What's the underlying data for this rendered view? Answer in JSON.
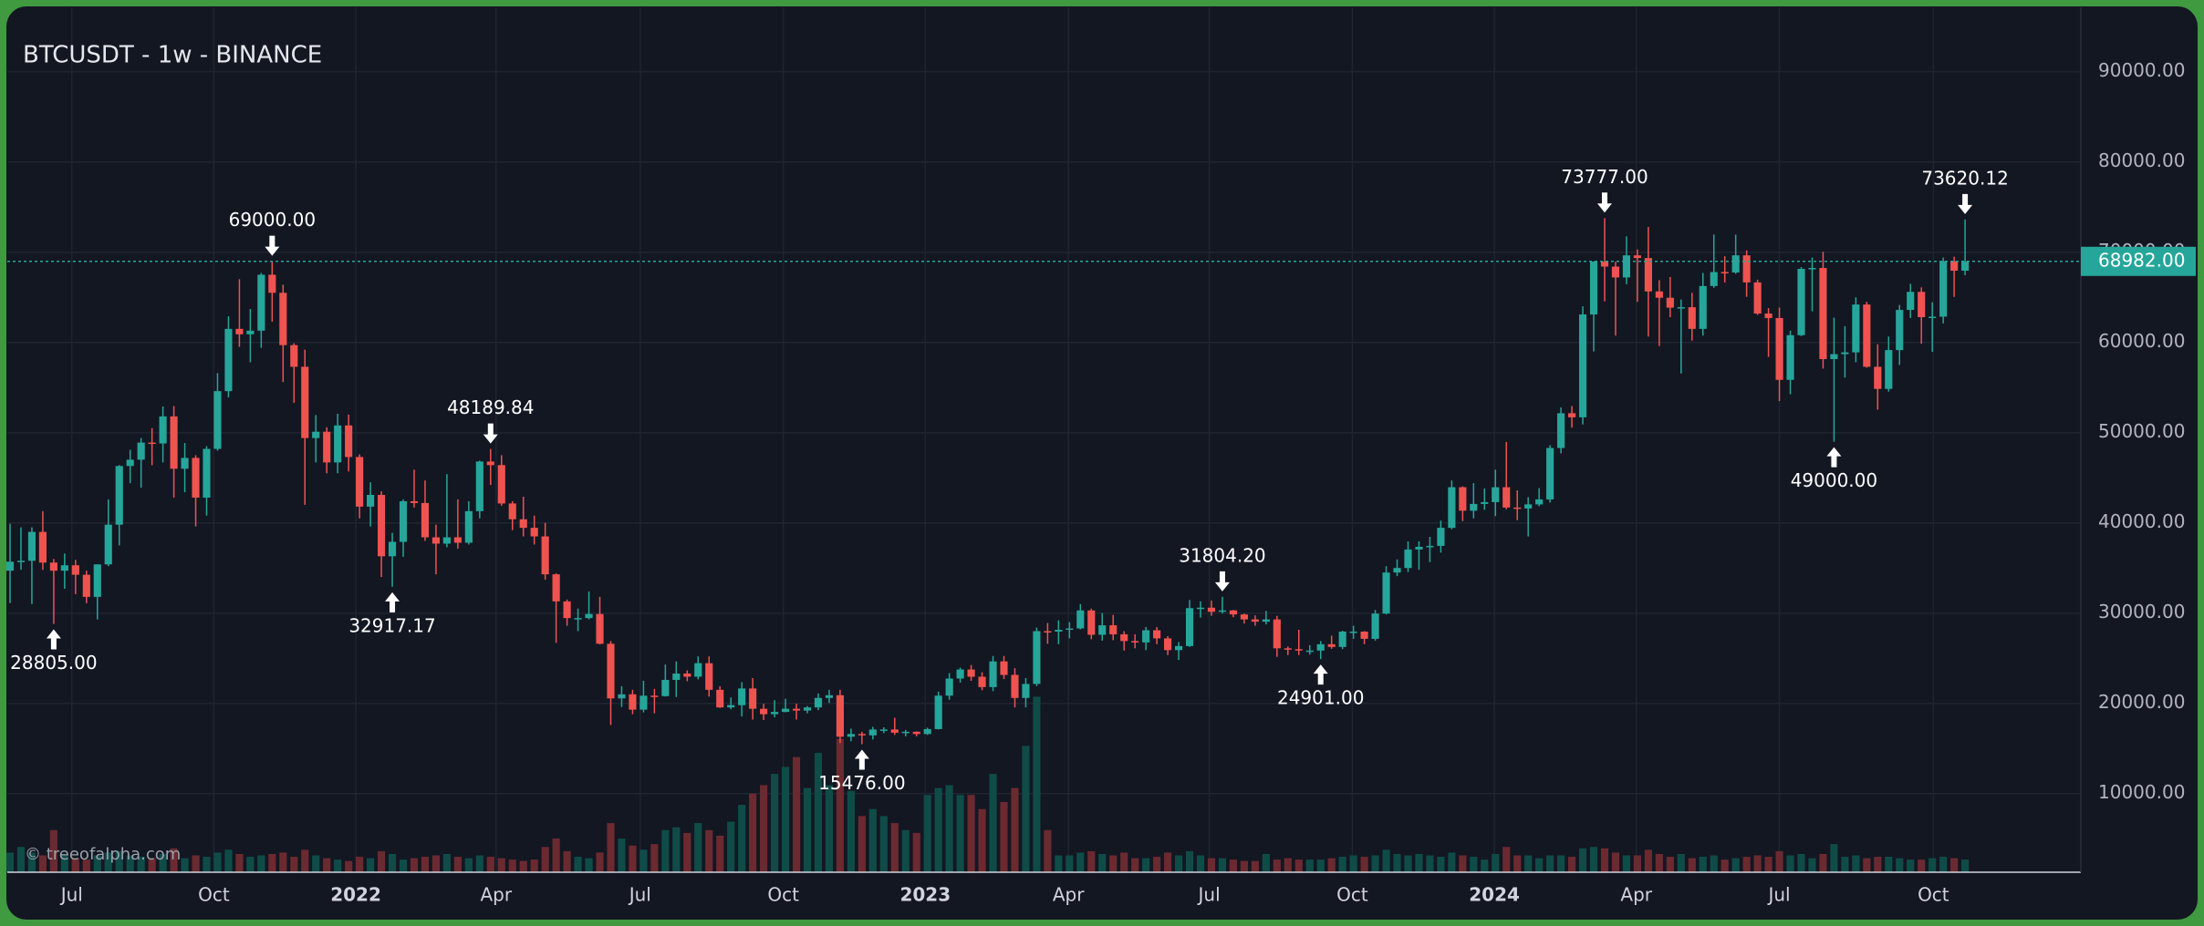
{
  "chart_data": {
    "type": "candlestick",
    "title": "BTCUSDT - 1w - BINANCE",
    "watermark": "© treeofalpha.com",
    "up_color": "#26a69a",
    "down_color": "#ef5350",
    "volume_up_color": "#0f4c48",
    "volume_down_color": "#6b2a30",
    "grid": true,
    "xlim": [
      -0.25,
      189.6
    ],
    "xticks": [
      {
        "value": 5.66,
        "label": "Jul"
      },
      {
        "value": 18.66,
        "label": "Oct"
      },
      {
        "value": 31.66,
        "label": "2022"
      },
      {
        "value": 44.5,
        "label": "Apr"
      },
      {
        "value": 57.7,
        "label": "Jul"
      },
      {
        "value": 70.8,
        "label": "Oct"
      },
      {
        "value": 83.8,
        "label": "2023"
      },
      {
        "value": 96.9,
        "label": "Apr"
      },
      {
        "value": 109.8,
        "label": "Jul"
      },
      {
        "value": 122.9,
        "label": "Oct"
      },
      {
        "value": 135.9,
        "label": "2024"
      },
      {
        "value": 148.9,
        "label": "Apr"
      },
      {
        "value": 162.0,
        "label": "Jul"
      },
      {
        "value": 176.1,
        "label": "Oct"
      }
    ],
    "ylim": [
      1283,
      97140
    ],
    "yticks": [
      {
        "value": 10000,
        "label": "10000.00"
      },
      {
        "value": 20000,
        "label": "20000.00"
      },
      {
        "value": 30000,
        "label": "30000.00"
      },
      {
        "value": 40000,
        "label": "40000.00"
      },
      {
        "value": 50000,
        "label": "50000.00"
      },
      {
        "value": 60000,
        "label": "60000.00"
      },
      {
        "value": 70000,
        "label": "70000.00"
      },
      {
        "value": 80000,
        "label": "80000.00"
      },
      {
        "value": 90000,
        "label": "90000.00"
      }
    ],
    "volume_lim": [
      0,
      12320000
    ],
    "last_price": {
      "value": 68982,
      "label": "68982.00"
    },
    "annotations": [
      {
        "value": 28805,
        "label": "28805.00"
      },
      {
        "value": 69000,
        "label": "69000.00"
      },
      {
        "value": 32917.17,
        "label": "32917.17"
      },
      {
        "value": 48189.84,
        "label": "48189.84"
      },
      {
        "value": 15476,
        "label": "15476.00"
      },
      {
        "value": 31804.2,
        "label": "31804.20"
      },
      {
        "value": 24901,
        "label": "24901.00"
      },
      {
        "value": 73777,
        "label": "73777.00"
      },
      {
        "value": 49000,
        "label": "49000.00"
      },
      {
        "value": 73620.12,
        "label": "73620.12"
      }
    ],
    "open": [
      34700,
      35700,
      35800,
      39000,
      35600,
      34700,
      35300,
      34250,
      31800,
      35400,
      39800,
      46300,
      47000,
      48900,
      48800,
      51800,
      46000,
      47200,
      42800,
      48200,
      54600,
      61500,
      60900,
      61300,
      67500,
      65500,
      59700,
      57300,
      49400,
      50100,
      46700,
      50800,
      47300,
      41800,
      43100,
      36300,
      37900,
      42400,
      42200,
      38400,
      37700,
      38400,
      37800,
      41300,
      46800,
      46400,
      42150,
      40400,
      39450,
      38500,
      34300,
      31300,
      29450,
      29450,
      29900,
      26600,
      20550,
      21000,
      19300,
      20850,
      20800,
      22600,
      23300,
      22950,
      24450,
      21500,
      19550,
      19800,
      21650,
      19400,
      18800,
      19050,
      19400,
      19200,
      19550,
      20600,
      20900,
      16300,
      16600,
      16450,
      17100,
      17100,
      16750,
      16850,
      16600,
      17150,
      20850,
      22750,
      23750,
      22950,
      21800,
      24650,
      23150,
      20600,
      22150,
      28000,
      27950,
      28150,
      28300,
      30300,
      27600,
      28650,
      27650,
      26900,
      26750,
      28100,
      27200,
      25900,
      26350,
      30550,
      30600,
      30150,
      30300,
      29850,
      29300,
      29050,
      29300,
      26100,
      26000,
      25850,
      25850,
      26550,
      26250,
      27950,
      27950,
      27150,
      29950,
      34500,
      35000,
      37050,
      37350,
      37450,
      39450,
      43950,
      41350,
      42100,
      42300,
      43950,
      41700,
      41600,
      42050,
      42600,
      48300,
      52150,
      51700,
      63100,
      68950,
      68400,
      67200,
      69650,
      69350,
      65650,
      64950,
      63850,
      63900,
      61500,
      66250,
      67800,
      67750,
      69650,
      66650,
      63200,
      62700,
      55850,
      60800,
      68150,
      68250,
      58150,
      58700,
      58900,
      64200,
      57300,
      54850,
      59150,
      63600,
      65600,
      62800,
      62850,
      69000,
      67950
    ],
    "high": [
      39900,
      39500,
      39500,
      41300,
      36000,
      36600,
      35900,
      34700,
      35400,
      42600,
      46400,
      48100,
      49400,
      50500,
      52900,
      52950,
      48850,
      47500,
      48500,
      56600,
      62900,
      67000,
      63700,
      67700,
      69000,
      66400,
      59900,
      59200,
      51950,
      50600,
      52100,
      52000,
      47600,
      44500,
      43500,
      38900,
      42600,
      45900,
      44700,
      39800,
      45400,
      42600,
      42400,
      46900,
      48189.84,
      47500,
      42400,
      42900,
      40800,
      40000,
      34400,
      31500,
      30500,
      32400,
      31800,
      26900,
      21900,
      21500,
      22500,
      21600,
      24300,
      24650,
      23650,
      25200,
      25200,
      21900,
      20650,
      22350,
      22800,
      19950,
      20350,
      20500,
      19950,
      19700,
      21100,
      21500,
      21500,
      17200,
      16850,
      17400,
      17350,
      18400,
      17050,
      16900,
      17300,
      21300,
      23350,
      23950,
      24250,
      23450,
      25250,
      25250,
      23900,
      22800,
      28400,
      28900,
      29200,
      29000,
      31000,
      30500,
      30000,
      29800,
      28000,
      27650,
      28450,
      28450,
      27450,
      26800,
      31450,
      31300,
      31400,
      31804.2,
      30350,
      29950,
      29750,
      30250,
      29700,
      26300,
      28150,
      26450,
      26900,
      27500,
      28050,
      28600,
      28000,
      30350,
      35200,
      35950,
      37950,
      37950,
      38450,
      40250,
      44700,
      44050,
      44400,
      43800,
      45900,
      48970,
      43600,
      42850,
      43850,
      48600,
      52800,
      52950,
      64000,
      69000,
      73777,
      68950,
      71750,
      70300,
      72800,
      66900,
      67250,
      64750,
      65500,
      67700,
      71950,
      69550,
      71950,
      70200,
      66950,
      63800,
      63850,
      61300,
      68350,
      69400,
      70050,
      62750,
      61800,
      65000,
      64500,
      59800,
      60650,
      64150,
      66500,
      66100,
      64450,
      69400,
      69500,
      73620.12
    ],
    "low": [
      31100,
      34800,
      31000,
      34800,
      28805,
      32700,
      32100,
      31100,
      29300,
      35200,
      37500,
      44400,
      43900,
      46400,
      46700,
      42800,
      43400,
      39600,
      40800,
      48000,
      53900,
      59500,
      57800,
      59400,
      62300,
      55600,
      53300,
      42000,
      46700,
      45500,
      45500,
      45700,
      40500,
      39600,
      34000,
      32917.17,
      36250,
      41700,
      38000,
      34300,
      37300,
      37150,
      37600,
      40500,
      44200,
      41900,
      39200,
      38500,
      37600,
      33700,
      26700,
      28600,
      28000,
      29300,
      26550,
      17600,
      19600,
      18800,
      19000,
      18900,
      20750,
      20700,
      22450,
      22650,
      20750,
      19500,
      19350,
      18550,
      18200,
      18150,
      18450,
      19000,
      18200,
      18900,
      19250,
      20050,
      15600,
      15800,
      15476,
      16000,
      16700,
      16500,
      16350,
      16350,
      16500,
      17100,
      20400,
      22300,
      22500,
      21450,
      21350,
      22700,
      19550,
      19550,
      21900,
      26600,
      26550,
      27200,
      28200,
      27100,
      26950,
      27000,
      25850,
      26100,
      25900,
      26550,
      25350,
      24800,
      26250,
      29500,
      29700,
      29950,
      29550,
      28850,
      28600,
      28750,
      25150,
      25350,
      25350,
      25400,
      24901,
      26050,
      26000,
      27150,
      26550,
      26950,
      29850,
      34100,
      34550,
      34800,
      35650,
      36700,
      39300,
      40200,
      40500,
      41450,
      40750,
      41500,
      40300,
      38500,
      41850,
      42250,
      47700,
      50550,
      50900,
      59000,
      64550,
      60750,
      66450,
      64500,
      60650,
      59600,
      62800,
      56550,
      60200,
      60750,
      66050,
      66650,
      67600,
      65050,
      63050,
      58400,
      53500,
      54250,
      60700,
      63450,
      57100,
      49000,
      56100,
      57800,
      57200,
      52550,
      54550,
      57500,
      62700,
      59850,
      58950,
      62100,
      65050,
      67450
    ],
    "close": [
      35700,
      35800,
      39000,
      35600,
      34700,
      35300,
      34250,
      31800,
      35400,
      39800,
      46300,
      47000,
      48900,
      48800,
      51800,
      46000,
      47200,
      42800,
      48200,
      54600,
      61500,
      60900,
      61300,
      67500,
      65500,
      59700,
      57300,
      49400,
      50100,
      46700,
      50800,
      47300,
      41800,
      43100,
      36300,
      37900,
      42400,
      42200,
      38400,
      37700,
      38400,
      37800,
      41300,
      46800,
      46400,
      42150,
      40400,
      39450,
      38500,
      34300,
      31300,
      29450,
      29450,
      29900,
      26600,
      20550,
      21000,
      19300,
      20850,
      20800,
      22600,
      23300,
      22950,
      24450,
      21500,
      19550,
      19800,
      21650,
      19400,
      18800,
      19050,
      19400,
      19200,
      19550,
      20600,
      20900,
      16300,
      16600,
      16450,
      17100,
      17100,
      16750,
      16850,
      16600,
      17150,
      20850,
      22750,
      23750,
      22950,
      21800,
      24650,
      23150,
      20600,
      22150,
      28000,
      27950,
      28150,
      28300,
      30300,
      27600,
      28650,
      27650,
      26900,
      26750,
      28100,
      27200,
      25900,
      26350,
      30550,
      30600,
      30150,
      30300,
      29850,
      29300,
      29050,
      29300,
      26100,
      26000,
      25850,
      25850,
      26550,
      26250,
      27950,
      27950,
      27150,
      29950,
      34500,
      35000,
      37050,
      37350,
      37450,
      39450,
      43950,
      41350,
      42100,
      42300,
      43950,
      41700,
      41600,
      42050,
      42600,
      48300,
      52150,
      51700,
      63100,
      68950,
      68400,
      67200,
      69650,
      69350,
      65650,
      64950,
      63850,
      63900,
      61500,
      66250,
      67800,
      67750,
      69650,
      66650,
      63200,
      62700,
      55850,
      60800,
      68150,
      68250,
      58150,
      58700,
      58900,
      64200,
      57300,
      54850,
      59150,
      63600,
      65600,
      62800,
      62850,
      69000,
      67950,
      68982
    ],
    "volume": [
      280000,
      360000,
      280000,
      240000,
      600000,
      260000,
      200000,
      180000,
      240000,
      280000,
      300000,
      240000,
      220000,
      200000,
      260000,
      340000,
      200000,
      240000,
      220000,
      280000,
      320000,
      260000,
      220000,
      240000,
      260000,
      280000,
      220000,
      320000,
      240000,
      200000,
      180000,
      160000,
      220000,
      200000,
      300000,
      260000,
      180000,
      200000,
      220000,
      240000,
      260000,
      220000,
      200000,
      240000,
      220000,
      200000,
      180000,
      160000,
      180000,
      360000,
      480000,
      300000,
      220000,
      200000,
      280000,
      700000,
      480000,
      380000,
      320000,
      400000,
      600000,
      640000,
      560000,
      700000,
      600000,
      520000,
      720000,
      960000,
      1120000,
      1240000,
      1400000,
      1500000,
      1640000,
      1200000,
      1700000,
      1240000,
      1900000,
      1160000,
      800000,
      900000,
      800000,
      700000,
      600000,
      560000,
      1100000,
      1200000,
      1240000,
      1100000,
      1100000,
      900000,
      1400000,
      1000000,
      1200000,
      1800000,
      2500000,
      600000,
      240000,
      240000,
      280000,
      300000,
      260000,
      240000,
      280000,
      200000,
      200000,
      220000,
      280000,
      240000,
      300000,
      240000,
      200000,
      200000,
      180000,
      160000,
      160000,
      260000,
      180000,
      200000,
      180000,
      180000,
      180000,
      200000,
      220000,
      240000,
      220000,
      240000,
      320000,
      260000,
      240000,
      260000,
      240000,
      220000,
      280000,
      240000,
      220000,
      180000,
      260000,
      360000,
      240000,
      240000,
      200000,
      240000,
      240000,
      220000,
      340000,
      360000,
      340000,
      280000,
      240000,
      240000,
      320000,
      260000,
      220000,
      260000,
      200000,
      220000,
      240000,
      180000,
      200000,
      220000,
      240000,
      220000,
      300000,
      240000,
      260000,
      200000,
      260000,
      400000,
      220000,
      240000,
      200000,
      220000,
      220000,
      200000,
      180000,
      180000,
      200000,
      220000,
      200000,
      180000
    ]
  }
}
